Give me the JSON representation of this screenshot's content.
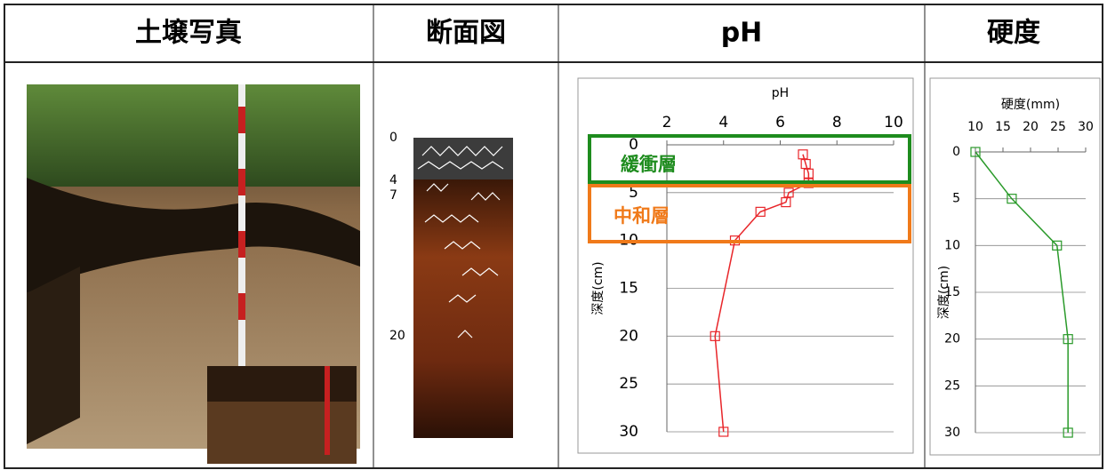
{
  "header": [
    "土壌写真",
    "断面図",
    "pH",
    "硬度"
  ],
  "profile": {
    "depth_labels": [
      0,
      4,
      7,
      20
    ]
  },
  "chart_data": [
    {
      "type": "line",
      "xlabel": "pH",
      "ylabel": "深度(cm)",
      "xlim": [
        2,
        10
      ],
      "xticks": [
        2,
        4,
        6,
        8,
        10
      ],
      "ylim": [
        0,
        30
      ],
      "yticks": [
        0,
        5,
        10,
        15,
        20,
        25,
        30
      ],
      "y_inverted": true,
      "grid": true,
      "series": [
        {
          "color": "#e8262a",
          "x": [
            6.8,
            6.9,
            7.0,
            7.0,
            6.3,
            6.2,
            5.3,
            4.4,
            3.7,
            4.0
          ],
          "values": [
            1,
            2,
            3,
            4,
            5,
            6,
            7,
            10,
            20,
            30
          ]
        }
      ],
      "annotations": [
        {
          "text": "緩衝層",
          "color": "#1e8c1e"
        },
        {
          "text": "中和層",
          "color": "#f07a1a"
        }
      ]
    },
    {
      "type": "line",
      "xlabel": "硬度(mm)",
      "ylabel": "深度(cm)",
      "xlim": [
        10,
        30
      ],
      "xticks": [
        10,
        15,
        20,
        25,
        30
      ],
      "ylim": [
        0,
        30
      ],
      "yticks": [
        0,
        5,
        10,
        15,
        20,
        25,
        30
      ],
      "y_inverted": true,
      "grid": true,
      "series": [
        {
          "color": "#2a9a2a",
          "x": [
            10,
            16.6,
            24.8,
            26.8,
            26.8
          ],
          "values": [
            0,
            5,
            10,
            20,
            30
          ]
        }
      ]
    }
  ]
}
